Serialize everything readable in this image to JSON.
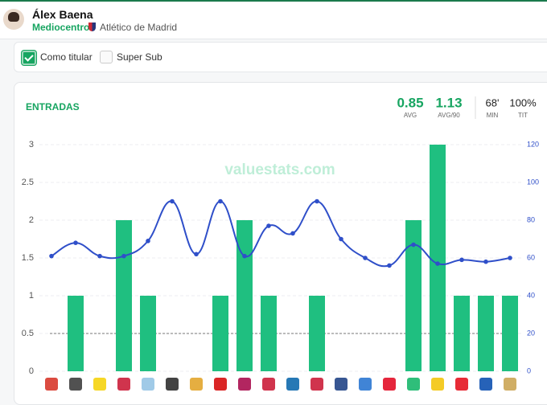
{
  "header": {
    "player": "Álex Baena",
    "position": "Mediocentro",
    "club": "Atlético de Madrid"
  },
  "filters": {
    "starter": "Como titular",
    "super_sub": "Super Sub"
  },
  "stats": [
    {
      "value": "0.85",
      "label": "AVG"
    },
    {
      "value": "1.13",
      "label": "AVG/90"
    },
    {
      "value": "68'",
      "label": "MIN"
    },
    {
      "value": "100%",
      "label": "TIT"
    }
  ],
  "watermark": "valuestats.com",
  "chart_data": {
    "type": "combo",
    "title": "ENTRADAS",
    "categories": [
      null,
      null,
      null,
      null,
      null,
      null,
      null,
      null,
      null,
      null,
      null,
      null,
      null,
      null,
      null,
      null,
      null,
      null,
      null,
      null
    ],
    "series": [
      {
        "type": "bar",
        "color": "#1fbf80",
        "values": [
          0,
          1,
          0,
          2,
          1,
          0,
          0,
          1,
          2,
          1,
          0,
          1,
          0,
          0,
          0,
          2,
          3,
          1,
          1,
          1
        ]
      },
      {
        "type": "line",
        "axis": "y2",
        "color": "#2f4fc9",
        "values": [
          61,
          68,
          61,
          61,
          69,
          90,
          62,
          90,
          61,
          77,
          73,
          90,
          70,
          60,
          56,
          67,
          57,
          59,
          58,
          60
        ]
      }
    ],
    "ylim": [
      0,
      3
    ],
    "yticks": [
      0,
      0.5,
      1,
      1.5,
      2,
      2.5,
      3
    ],
    "y2lim": [
      0,
      120
    ],
    "y2ticks": [
      0,
      20,
      40,
      60,
      80,
      100,
      120
    ],
    "reference_line": 0.5,
    "grid": true
  }
}
